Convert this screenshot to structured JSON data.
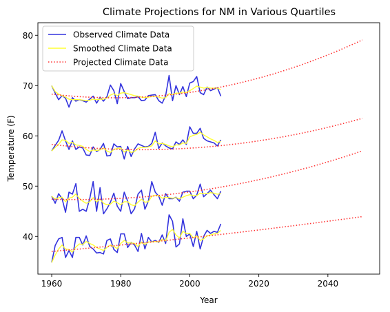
{
  "chart_data": {
    "type": "line",
    "title": "Climate Projections for NM in Various Quartiles",
    "xlabel": "Year",
    "ylabel": "Temperature (F)",
    "xlim": [
      1956,
      2055
    ],
    "ylim": [
      32.5,
      82.5
    ],
    "xticks": [
      1960,
      1980,
      2000,
      2020,
      2040
    ],
    "yticks": [
      40,
      50,
      60,
      70,
      80
    ],
    "grid": false,
    "legend_position": "top-left",
    "legend": [
      {
        "label": "Observed Climate Data",
        "color": "#3333dd",
        "style": "solid"
      },
      {
        "label": "Smoothed Climate Data",
        "color": "#ffff33",
        "style": "solid"
      },
      {
        "label": "Projected Climate Data",
        "color": "#ff3333",
        "style": "dotted"
      }
    ],
    "observed_x_start": 1960,
    "series": [
      {
        "quartile": 4,
        "observed": [
          70.0,
          68.5,
          67.2,
          68.0,
          67.5,
          65.7,
          67.6,
          66.9,
          67.2,
          67.0,
          66.7,
          67.3,
          67.9,
          66.5,
          67.7,
          66.9,
          67.8,
          70.1,
          69.0,
          66.4,
          70.4,
          68.8,
          67.4,
          67.6,
          67.6,
          67.8,
          67.0,
          67.1,
          68.0,
          68.1,
          68.2,
          67.0,
          66.5,
          68.0,
          72.0,
          67.0,
          70.0,
          68.2,
          69.8,
          67.8,
          70.5,
          70.8,
          71.8,
          68.6,
          68.2,
          69.7,
          69.0,
          69.3,
          69.6,
          67.9
        ],
        "smoothed": [
          70.0,
          68.8,
          68.3,
          68.0,
          67.7,
          67.3,
          67.2,
          67.2,
          67.2,
          67.1,
          67.0,
          67.1,
          67.3,
          67.2,
          67.3,
          67.3,
          67.5,
          68.1,
          68.4,
          68.0,
          68.5,
          68.6,
          68.4,
          68.2,
          68.0,
          67.9,
          67.7,
          67.6,
          67.7,
          67.8,
          67.9,
          67.7,
          67.5,
          67.6,
          68.4,
          68.2,
          68.5,
          68.5,
          68.7,
          68.6,
          69.0,
          69.4,
          69.9,
          69.7,
          69.5,
          69.6,
          69.5,
          69.5,
          69.5,
          69.2
        ],
        "projected": {
          "base_year": 1960,
          "end_year": 2050,
          "a": 68.3,
          "b": -0.08,
          "c": 0.00222
        }
      },
      {
        "quartile": 3,
        "observed": [
          57.0,
          58.1,
          59.1,
          61.0,
          59.0,
          57.3,
          59.0,
          57.3,
          57.8,
          57.6,
          56.2,
          56.1,
          57.8,
          56.9,
          57.3,
          58.5,
          56.0,
          56.1,
          58.4,
          57.8,
          57.9,
          55.4,
          57.9,
          55.9,
          57.4,
          58.4,
          58.1,
          57.8,
          57.9,
          58.5,
          60.7,
          57.5,
          58.6,
          58.0,
          57.6,
          57.4,
          58.8,
          58.3,
          59.2,
          58.3,
          61.8,
          60.5,
          60.5,
          61.5,
          59.5,
          59.0,
          58.8,
          58.6,
          58.0,
          59.2
        ],
        "smoothed": [
          57.0,
          57.7,
          58.3,
          59.2,
          59.1,
          58.5,
          58.7,
          58.2,
          58.1,
          57.9,
          57.3,
          56.9,
          57.2,
          57.1,
          57.2,
          57.6,
          57.0,
          56.7,
          57.3,
          57.5,
          57.6,
          56.8,
          57.2,
          56.7,
          56.9,
          57.5,
          57.7,
          57.7,
          57.8,
          58.0,
          59.0,
          58.4,
          58.5,
          58.3,
          58.0,
          57.8,
          58.2,
          58.2,
          58.6,
          58.5,
          59.8,
          60.1,
          60.3,
          60.7,
          60.2,
          59.8,
          59.4,
          59.1,
          58.7,
          58.9
        ],
        "projected": {
          "base_year": 1960,
          "end_year": 2050,
          "a": 58.3,
          "b": -0.08,
          "c": 0.00153
        }
      },
      {
        "quartile": 2,
        "observed": [
          48.0,
          46.6,
          48.5,
          47.5,
          44.8,
          48.8,
          48.4,
          50.5,
          45.0,
          45.4,
          45.0,
          47.5,
          50.9,
          45.0,
          49.7,
          44.5,
          45.5,
          46.8,
          48.6,
          46.0,
          45.0,
          48.8,
          47.0,
          44.5,
          45.5,
          48.4,
          49.2,
          45.4,
          47.0,
          50.9,
          48.8,
          48.0,
          46.2,
          48.5,
          47.5,
          47.5,
          47.8,
          47.0,
          48.8,
          49.0,
          49.0,
          47.5,
          48.2,
          50.4,
          47.9,
          48.5,
          49.2,
          48.3,
          47.5,
          49.0
        ],
        "smoothed": [
          48.0,
          47.4,
          47.7,
          47.8,
          46.9,
          47.6,
          47.8,
          48.4,
          47.6,
          47.0,
          46.6,
          46.9,
          47.7,
          46.9,
          47.4,
          46.6,
          46.3,
          46.4,
          47.0,
          46.7,
          46.3,
          46.9,
          46.9,
          46.3,
          46.1,
          46.8,
          47.4,
          46.8,
          46.9,
          48.0,
          48.2,
          48.1,
          47.6,
          47.8,
          47.7,
          47.6,
          47.7,
          47.5,
          47.8,
          48.1,
          48.3,
          48.1,
          48.1,
          48.6,
          48.5,
          48.5,
          48.7,
          48.6,
          48.4,
          48.5
        ],
        "projected": {
          "base_year": 1960,
          "end_year": 2050,
          "a": 47.4,
          "b": -0.02,
          "c": 0.00141
        }
      },
      {
        "quartile": 1,
        "observed": [
          34.8,
          38.2,
          39.5,
          39.8,
          35.8,
          37.2,
          35.8,
          39.8,
          39.8,
          38.3,
          40.1,
          38.0,
          37.5,
          36.7,
          36.8,
          36.5,
          39.2,
          39.5,
          37.4,
          36.8,
          40.5,
          40.5,
          37.8,
          38.8,
          38.3,
          37.0,
          40.6,
          37.5,
          39.8,
          38.9,
          39.2,
          38.8,
          40.3,
          38.6,
          44.3,
          43.0,
          37.9,
          38.5,
          43.5,
          40.0,
          40.5,
          38.0,
          41.0,
          37.5,
          40.0,
          41.2,
          40.6,
          41.0,
          40.8,
          42.5
        ],
        "smoothed": [
          34.8,
          36.3,
          37.5,
          38.3,
          37.5,
          37.4,
          36.9,
          37.9,
          38.5,
          38.4,
          39.0,
          38.6,
          38.3,
          37.8,
          37.5,
          37.2,
          37.8,
          38.3,
          38.0,
          37.6,
          38.6,
          39.2,
          38.7,
          38.7,
          38.6,
          38.0,
          38.9,
          38.4,
          38.9,
          38.9,
          39.0,
          38.9,
          39.4,
          39.1,
          40.8,
          41.4,
          40.3,
          39.7,
          41.0,
          40.6,
          40.6,
          39.7,
          40.1,
          39.2,
          39.5,
          40.1,
          40.3,
          40.5,
          40.6,
          41.2
        ],
        "projected": {
          "base_year": 1960,
          "end_year": 2050,
          "a": 37.0,
          "b": 0.06,
          "c": 0.00019
        }
      }
    ]
  }
}
